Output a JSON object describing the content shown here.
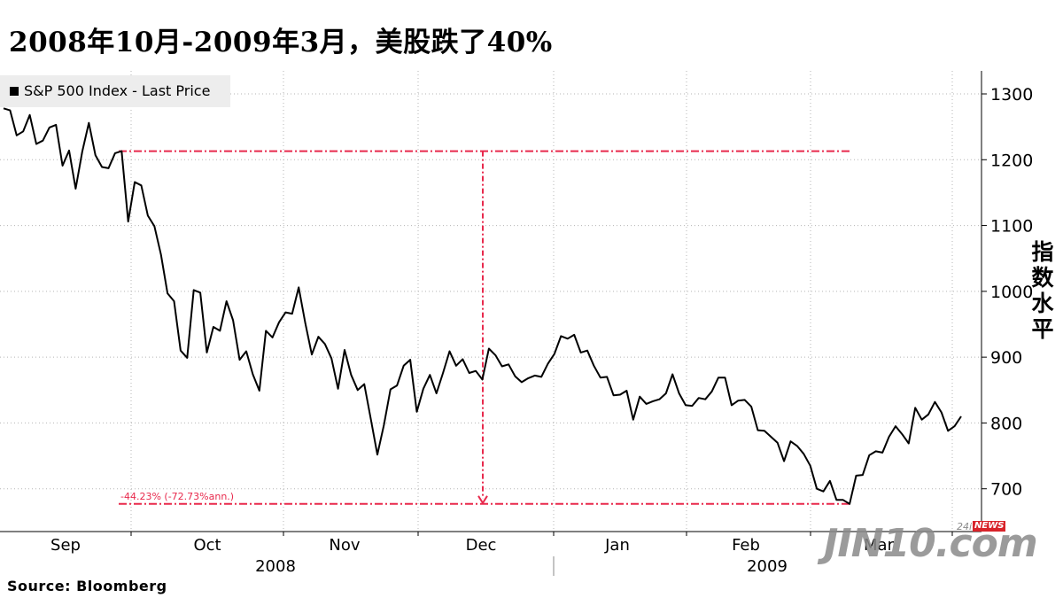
{
  "chart_data": {
    "type": "line",
    "title": "2008年10月-2009年3月，美股跌了40%",
    "ylabel": "指数水平",
    "source": "Source: Bloomberg",
    "legend": {
      "label": "S&P 500 Index - Last Price",
      "placement": "top-left"
    },
    "ylim": [
      635,
      1335
    ],
    "yticks": [
      700,
      800,
      900,
      1000,
      1100,
      1200,
      1300
    ],
    "x_month_labels": [
      "Sep",
      "Oct",
      "Nov",
      "Dec",
      "Jan",
      "Feb",
      "Mar"
    ],
    "x_year_labels": [
      "2008",
      "2009"
    ],
    "grid": true,
    "series": [
      {
        "name": "S&P 500 Index - Last Price",
        "color": "#000000",
        "values": [
          1278,
          1275,
          1237,
          1243,
          1268,
          1224,
          1229,
          1249,
          1253,
          1191,
          1214,
          1156,
          1212,
          1256,
          1207,
          1189,
          1187,
          1210,
          1213,
          1106,
          1166,
          1161,
          1115,
          1099,
          1056,
          997,
          985,
          910,
          899,
          1002,
          998,
          907,
          946,
          940,
          985,
          956,
          896,
          909,
          874,
          849,
          940,
          930,
          953,
          968,
          966,
          1006,
          952,
          904,
          931,
          920,
          898,
          852,
          911,
          873,
          850,
          859,
          806,
          752,
          797,
          851,
          857,
          887,
          896,
          817,
          852,
          873,
          845,
          876,
          909,
          887,
          897,
          876,
          879,
          866,
          913,
          903,
          886,
          889,
          871,
          862,
          868,
          872,
          870,
          890,
          905,
          932,
          928,
          934,
          907,
          910,
          887,
          869,
          870,
          842,
          843,
          849,
          805,
          840,
          829,
          833,
          836,
          845,
          874,
          845,
          827,
          826,
          838,
          836,
          848,
          869,
          869,
          827,
          834,
          835,
          825,
          789,
          788,
          779,
          770,
          742,
          772,
          765,
          753,
          735,
          700,
          696,
          712,
          683,
          683,
          677,
          720,
          721,
          751,
          757,
          755,
          779,
          795,
          783,
          769,
          823,
          805,
          813,
          832,
          816,
          788,
          795,
          810
        ]
      }
    ],
    "annotations": {
      "peak_level": 1213,
      "trough_level": 677,
      "change_label": "-44.23% (-72.73%ann.)",
      "color": "#e8294c"
    }
  }
}
